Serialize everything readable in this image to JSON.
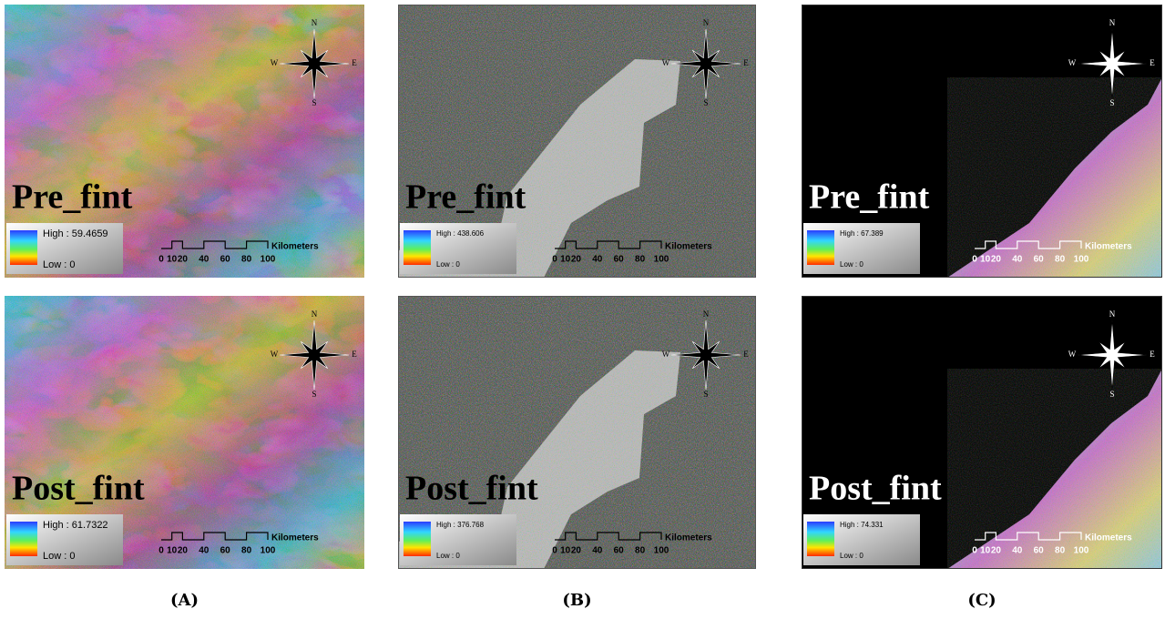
{
  "columns": [
    {
      "caption": "(A)",
      "panels": [
        {
          "title": "Pre_fint",
          "legend_high": "High : 59.4659",
          "legend_low": "Low : 0",
          "scale_ticks": [
            "0",
            "10",
            "20",
            "40",
            "60",
            "80",
            "100"
          ],
          "scale_unit": "Kilometers",
          "compass": [
            "N",
            "E",
            "S",
            "W"
          ]
        },
        {
          "title": "Post_fint",
          "legend_high": "High : 61.7322",
          "legend_low": "Low : 0",
          "scale_ticks": [
            "0",
            "10",
            "20",
            "40",
            "60",
            "80",
            "100"
          ],
          "scale_unit": "Kilometers",
          "compass": [
            "N",
            "E",
            "S",
            "W"
          ]
        }
      ]
    },
    {
      "caption": "(B)",
      "panels": [
        {
          "title": "Pre_fint",
          "legend_high": "High : 438.606",
          "legend_low": "Low : 0",
          "scale_ticks": [
            "0",
            "10",
            "20",
            "40",
            "60",
            "80",
            "100"
          ],
          "scale_unit": "Kilometers",
          "compass": [
            "N",
            "E",
            "S",
            "W"
          ]
        },
        {
          "title": "Post_fint",
          "legend_high": "High : 376.768",
          "legend_low": "Low : 0",
          "scale_ticks": [
            "0",
            "10",
            "20",
            "40",
            "60",
            "80",
            "100"
          ],
          "scale_unit": "Kilometers",
          "compass": [
            "N",
            "E",
            "S",
            "W"
          ]
        }
      ]
    },
    {
      "caption": "(C)",
      "panels": [
        {
          "title": "Pre_fint",
          "legend_high": "High : 67.389",
          "legend_low": "Low : 0",
          "scale_ticks": [
            "0",
            "10",
            "20",
            "40",
            "60",
            "80",
            "100"
          ],
          "scale_unit": "Kilometers",
          "compass": [
            "N",
            "E",
            "S",
            "W"
          ]
        },
        {
          "title": "Post_fint",
          "legend_high": "High : 74.331",
          "legend_low": "Low : 0",
          "scale_ticks": [
            "0",
            "10",
            "20",
            "40",
            "60",
            "80",
            "100"
          ],
          "scale_unit": "Kilometers",
          "compass": [
            "N",
            "E",
            "S",
            "W"
          ]
        }
      ]
    }
  ]
}
